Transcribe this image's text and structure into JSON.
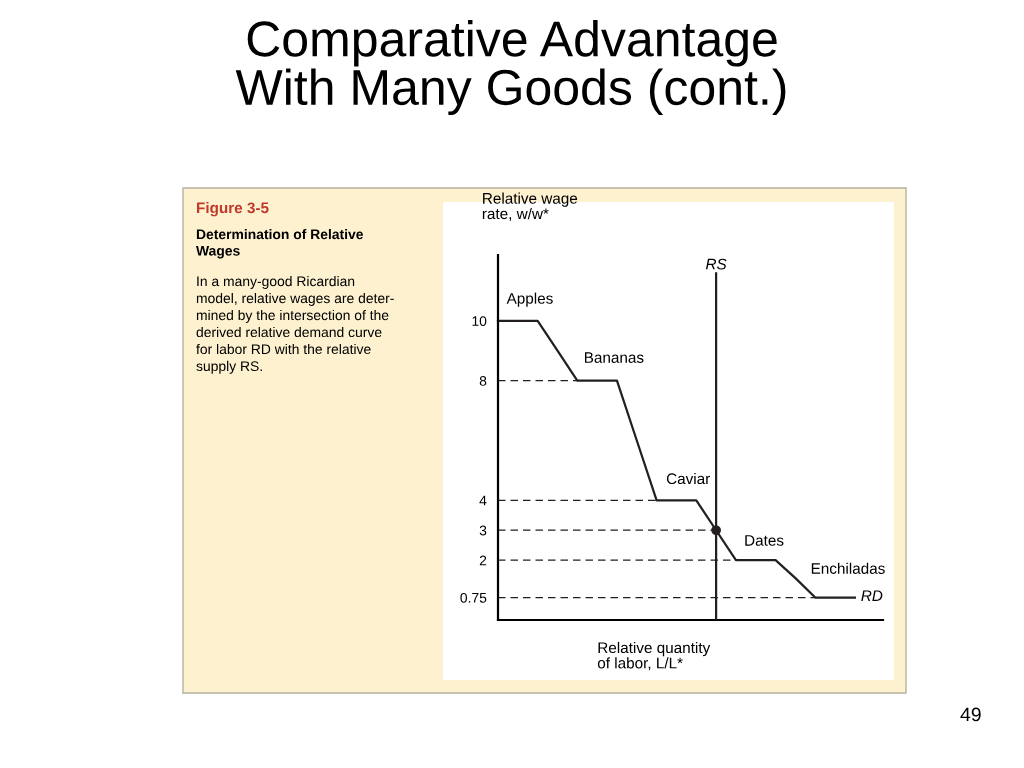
{
  "chart_data": {
    "type": "line",
    "title": "Comparative Advantage\nWith Many Goods (cont.)",
    "ylabel": "Relative wage\nrate, w/w*",
    "xlabel": "Relative quantity\nof labor, L/L*",
    "categories": [
      null,
      null,
      null,
      null,
      null,
      null,
      null,
      null,
      null,
      null,
      null,
      null,
      null,
      null,
      null,
      null,
      null,
      null,
      null
    ],
    "ylim": [
      0,
      12.2
    ],
    "yticks": [
      10,
      8,
      4,
      3,
      2,
      0.75
    ],
    "tick_labels": "y",
    "grid": false,
    "series": [
      {
        "color": "#231f20",
        "line_style": "solid",
        "values": [
          10,
          10,
          10,
          9,
          8,
          8,
          8,
          6,
          4,
          4,
          4,
          3,
          2,
          2,
          2,
          1.4,
          0.75,
          0.75,
          0.75
        ]
      },
      {
        "color": "#231f20",
        "line_style": "dashed",
        "values": [
          8,
          8,
          8,
          8,
          8,
          null,
          null,
          null,
          null,
          null,
          null,
          null,
          null,
          null,
          null,
          null,
          null,
          null,
          null
        ]
      },
      {
        "color": "#231f20",
        "line_style": "dashed",
        "values": [
          4,
          4,
          4,
          4,
          4,
          4,
          4,
          4,
          4,
          null,
          null,
          null,
          null,
          null,
          null,
          null,
          null,
          null,
          null
        ]
      },
      {
        "color": "#231f20",
        "line_style": "dashed",
        "values": [
          3,
          3,
          3,
          3,
          3,
          3,
          3,
          3,
          3,
          3,
          3,
          3,
          null,
          null,
          null,
          null,
          null,
          null,
          null
        ]
      },
      {
        "color": "#231f20",
        "line_style": "dashed",
        "values": [
          2,
          2,
          2,
          2,
          2,
          2,
          2,
          2,
          2,
          2,
          2,
          2,
          2,
          null,
          null,
          null,
          null,
          null,
          null
        ]
      },
      {
        "color": "#231f20",
        "line_style": "dashed",
        "values": [
          0.75,
          0.75,
          0.75,
          0.75,
          0.75,
          0.75,
          0.75,
          0.75,
          0.75,
          0.75,
          0.75,
          0.75,
          0.75,
          0.75,
          0.75,
          0.75,
          0.75,
          null,
          null
        ]
      },
      {
        "color": "#231f20",
        "line_style": "solid",
        "marker": "circle",
        "values": [
          null,
          null,
          null,
          null,
          null,
          null,
          null,
          null,
          null,
          null,
          null,
          3,
          null,
          null,
          null,
          null,
          null,
          null,
          null
        ]
      }
    ],
    "annotations": [
      "Figure 3-5",
      "Determination of Relative\nWages",
      "In a many-good Ricardian\nmodel, relative wages are deter-\nmined by the intersection of the\nderived relative demand curve\nfor labor RD with the relative\nsupply RS.",
      "49",
      "Apples",
      "Bananas",
      "Caviar",
      "Dates",
      "Enchiladas",
      "RD",
      "RS"
    ]
  }
}
